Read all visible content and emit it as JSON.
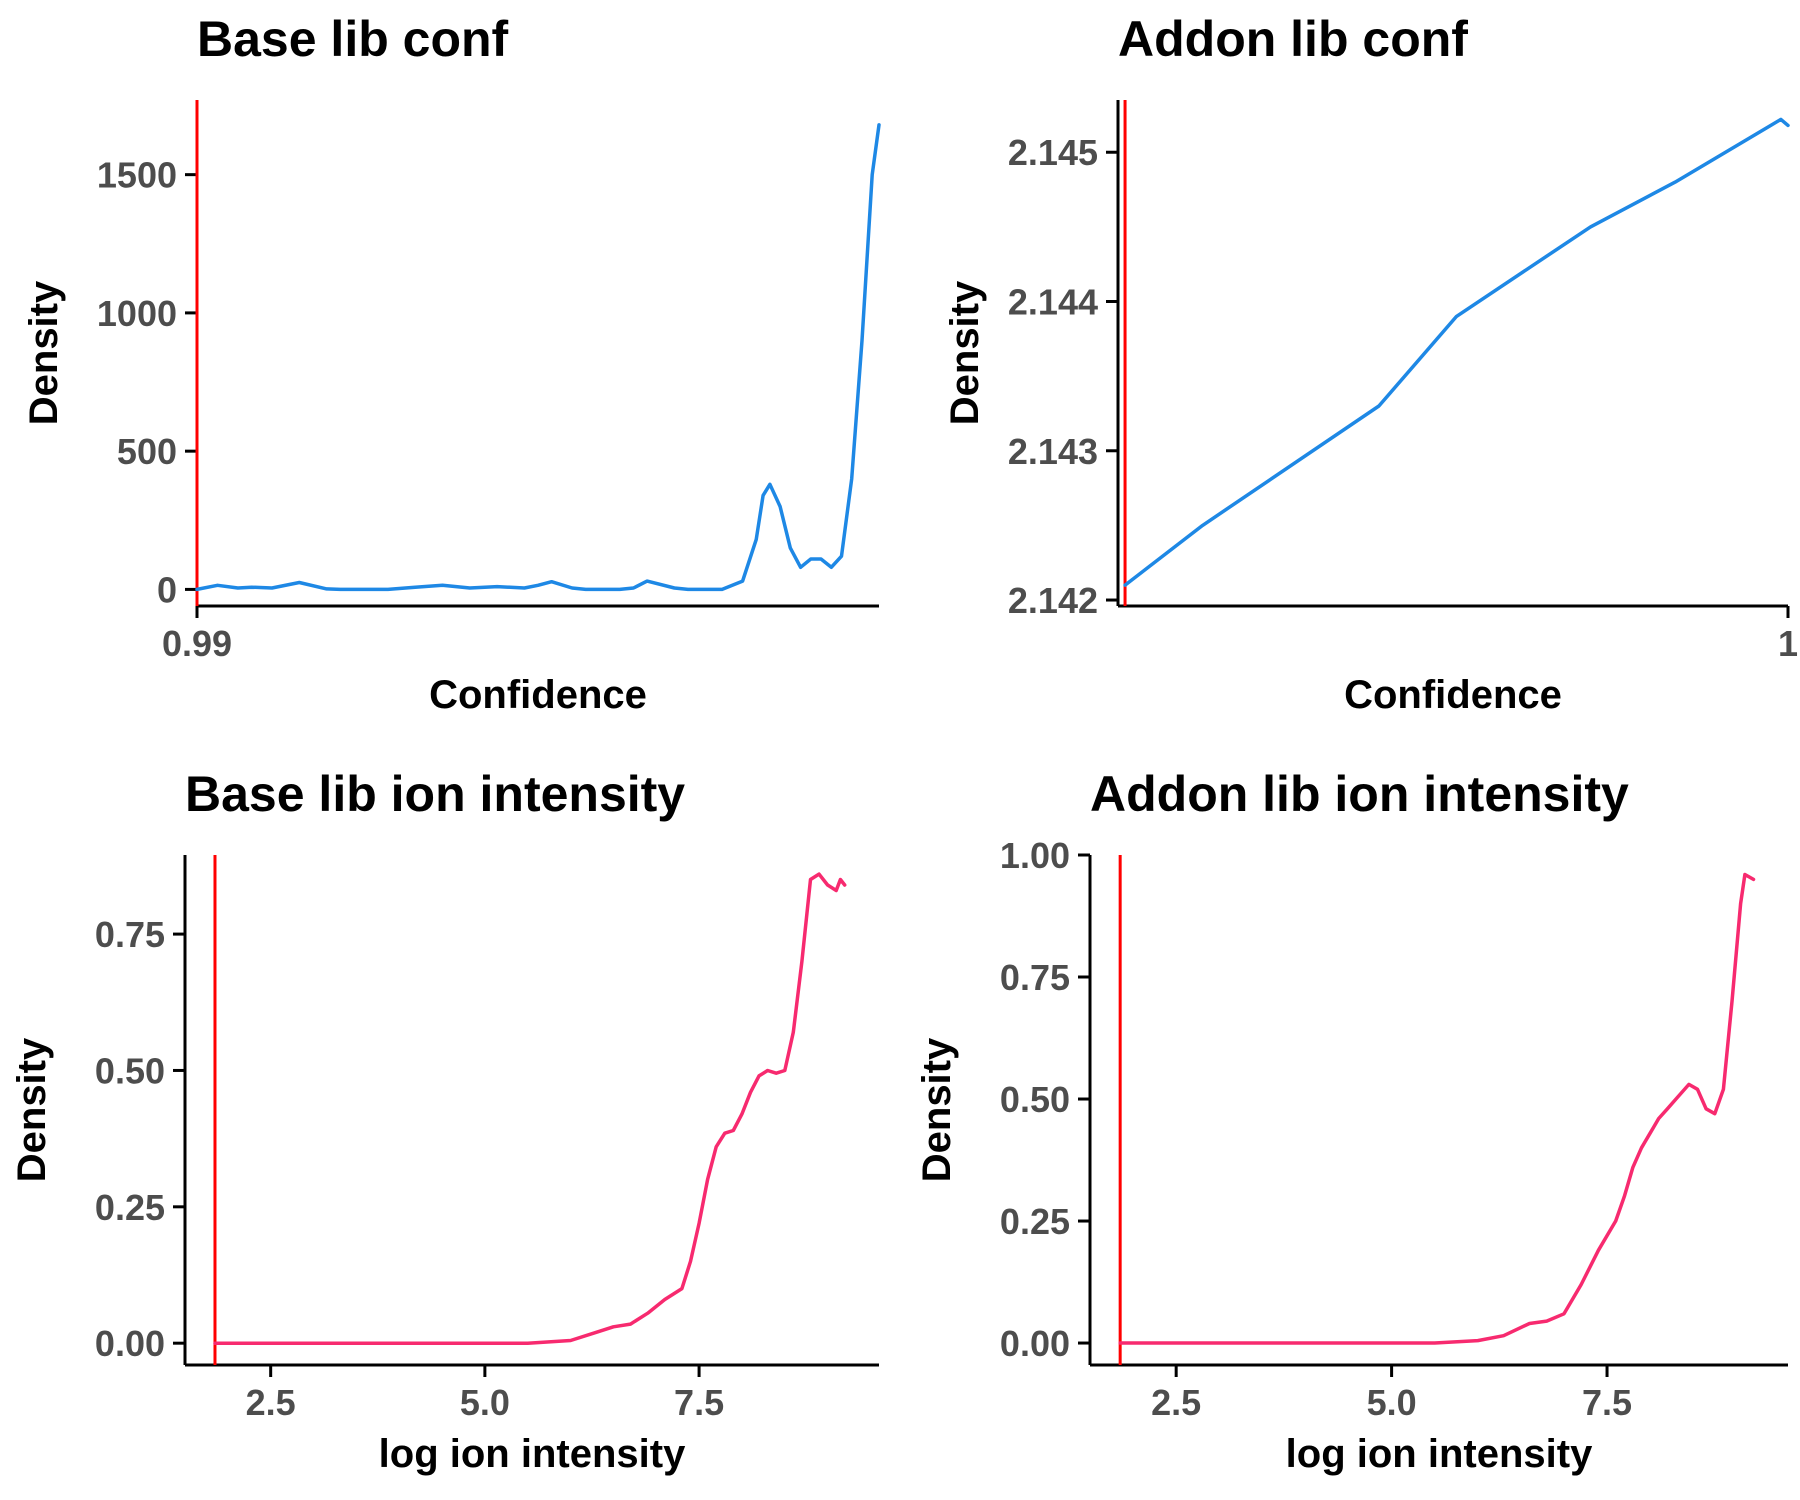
{
  "colors": {
    "threshold": "#ff0000",
    "conf_density": "#1e88e5",
    "intensity_density": "#f72a6f",
    "axis": "#000000",
    "tick_label": "#4d4d4d"
  },
  "chart_data": [
    {
      "type": "line",
      "title": "Base lib conf",
      "xlabel": "Confidence",
      "ylabel": "Density",
      "xlim": [
        0.99,
        1.0
      ],
      "ylim": [
        -60,
        1770
      ],
      "x_ticks": [
        {
          "value": 0.99,
          "label": "0.99"
        }
      ],
      "y_ticks": [
        {
          "value": 0,
          "label": "0"
        },
        {
          "value": 500,
          "label": "500"
        },
        {
          "value": 1000,
          "label": "1000"
        },
        {
          "value": 1500,
          "label": "1500"
        }
      ],
      "vline": {
        "x": 0.99
      },
      "series": [
        {
          "x": [
            0.99,
            0.9903,
            0.9906,
            0.9908,
            0.9911,
            0.9915,
            0.9919,
            0.9921,
            0.9923,
            0.9925,
            0.9928,
            0.9932,
            0.9936,
            0.994,
            0.9944,
            0.9948,
            0.995,
            0.9952,
            0.9955,
            0.9957,
            0.9959,
            0.9962,
            0.9964,
            0.9966,
            0.997,
            0.9972,
            0.9974,
            0.9977,
            0.998,
            0.9982,
            0.9983,
            0.9984,
            0.99855,
            0.9987,
            0.99885,
            0.999,
            0.99915,
            0.9993,
            0.99945,
            0.9996,
            0.99975,
            0.9999,
            1.0
          ],
          "y": [
            0,
            15,
            5,
            8,
            5,
            25,
            2,
            0,
            0,
            0,
            0,
            8,
            15,
            5,
            10,
            5,
            15,
            28,
            5,
            0,
            0,
            0,
            5,
            30,
            5,
            0,
            0,
            0,
            30,
            180,
            340,
            380,
            300,
            150,
            80,
            110,
            110,
            80,
            120,
            400,
            900,
            1500,
            1680
          ]
        }
      ]
    },
    {
      "type": "line",
      "title": "Addon lib conf",
      "xlabel": "Confidence",
      "ylabel": "Density",
      "xlim": [
        0.9905,
        1.0
      ],
      "ylim": [
        2.14196,
        2.14535
      ],
      "x_ticks": [
        {
          "value": 1.0,
          "label": "1"
        }
      ],
      "y_ticks": [
        {
          "value": 2.142,
          "label": "2.142"
        },
        {
          "value": 2.143,
          "label": "2.143"
        },
        {
          "value": 2.144,
          "label": "2.144"
        },
        {
          "value": 2.145,
          "label": "2.145"
        }
      ],
      "vline": {
        "x": 0.9906
      },
      "series": [
        {
          "x": [
            0.9906,
            0.9917,
            0.9942,
            0.9953,
            0.9972,
            0.9984,
            0.9999,
            1.0
          ],
          "y": [
            2.1421,
            2.1425,
            2.1433,
            2.1439,
            2.1445,
            2.1448,
            2.14522,
            2.14518
          ]
        }
      ]
    },
    {
      "type": "line",
      "title": "Base lib ion intensity",
      "xlabel": "log ion intensity",
      "ylabel": "Density",
      "xlim": [
        1.5,
        9.6
      ],
      "ylim": [
        -0.04,
        0.895
      ],
      "x_ticks": [
        {
          "value": 2.5,
          "label": "2.5"
        },
        {
          "value": 5.0,
          "label": "5.0"
        },
        {
          "value": 7.5,
          "label": "7.5"
        }
      ],
      "y_ticks": [
        {
          "value": 0.0,
          "label": "0.00"
        },
        {
          "value": 0.25,
          "label": "0.25"
        },
        {
          "value": 0.5,
          "label": "0.50"
        },
        {
          "value": 0.75,
          "label": "0.75"
        }
      ],
      "vline": {
        "x": 1.85
      },
      "series": [
        {
          "x": [
            1.85,
            3.0,
            4.0,
            5.0,
            5.5,
            6.0,
            6.3,
            6.5,
            6.7,
            6.9,
            7.1,
            7.3,
            7.4,
            7.5,
            7.6,
            7.7,
            7.8,
            7.9,
            8.0,
            8.1,
            8.2,
            8.3,
            8.4,
            8.5,
            8.6,
            8.7,
            8.8,
            8.9,
            9.0,
            9.1,
            9.15,
            9.2
          ],
          "y": [
            0.0,
            0.0,
            0.0,
            0.0,
            0.0,
            0.005,
            0.02,
            0.03,
            0.035,
            0.055,
            0.08,
            0.1,
            0.15,
            0.22,
            0.3,
            0.36,
            0.385,
            0.39,
            0.42,
            0.46,
            0.49,
            0.5,
            0.495,
            0.5,
            0.57,
            0.7,
            0.85,
            0.86,
            0.84,
            0.83,
            0.85,
            0.84
          ]
        }
      ]
    },
    {
      "type": "line",
      "title": "Addon lib ion intensity",
      "xlabel": "log ion intensity",
      "ylabel": "Density",
      "xlim": [
        1.5,
        9.6
      ],
      "ylim": [
        -0.045,
        1.0
      ],
      "x_ticks": [
        {
          "value": 2.5,
          "label": "2.5"
        },
        {
          "value": 5.0,
          "label": "5.0"
        },
        {
          "value": 7.5,
          "label": "7.5"
        }
      ],
      "y_ticks": [
        {
          "value": 0.0,
          "label": "0.00"
        },
        {
          "value": 0.25,
          "label": "0.25"
        },
        {
          "value": 0.5,
          "label": "0.50"
        },
        {
          "value": 0.75,
          "label": "0.75"
        },
        {
          "value": 1.0,
          "label": "1.00"
        }
      ],
      "vline": {
        "x": 1.85
      },
      "series": [
        {
          "x": [
            1.85,
            3.0,
            4.0,
            5.0,
            5.5,
            6.0,
            6.3,
            6.6,
            6.8,
            7.0,
            7.2,
            7.4,
            7.6,
            7.7,
            7.8,
            7.9,
            8.0,
            8.1,
            8.2,
            8.3,
            8.45,
            8.55,
            8.65,
            8.75,
            8.85,
            8.95,
            9.05,
            9.1,
            9.2
          ],
          "y": [
            0.0,
            0.0,
            0.0,
            0.0,
            0.0,
            0.005,
            0.015,
            0.04,
            0.045,
            0.06,
            0.12,
            0.19,
            0.25,
            0.3,
            0.36,
            0.4,
            0.43,
            0.46,
            0.48,
            0.5,
            0.53,
            0.52,
            0.48,
            0.47,
            0.52,
            0.7,
            0.9,
            0.96,
            0.95
          ]
        }
      ]
    }
  ]
}
